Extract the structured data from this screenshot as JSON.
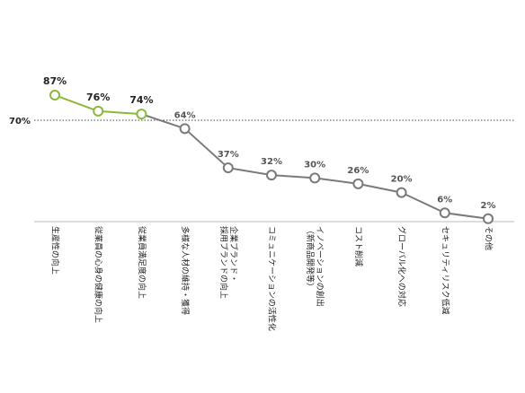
{
  "chart_data": {
    "type": "line",
    "title": "",
    "xlabel": "",
    "ylabel": "",
    "ylim": [
      0,
      100
    ],
    "grid": false,
    "reference_line": {
      "value": 70,
      "label": "70%",
      "style": "dotted"
    },
    "categories": [
      "生産性の向上",
      "従業員の心身の健康の向上",
      "従業員満足度の向上",
      "多様な人材の維持・獲得",
      "企業ブランド・|採用ブランドの向上",
      "コミュニケーションの活性化",
      "イノベーションの創出|（新商品開発等）",
      "コスト削減",
      "グローバル化への対応",
      "セキュリティリスク低減",
      "その他"
    ],
    "values": [
      87,
      76,
      74,
      64,
      37,
      32,
      30,
      26,
      20,
      6,
      2
    ],
    "value_labels": [
      "87%",
      "76%",
      "74%",
      "64%",
      "37%",
      "32%",
      "30%",
      "26%",
      "20%",
      "6%",
      "2%"
    ],
    "highlight_count": 3,
    "colors": {
      "highlight": "#8cb83c",
      "normal": "#7a7a7a",
      "reference_line": "#444444",
      "baseline": "#bbbbbb"
    }
  }
}
